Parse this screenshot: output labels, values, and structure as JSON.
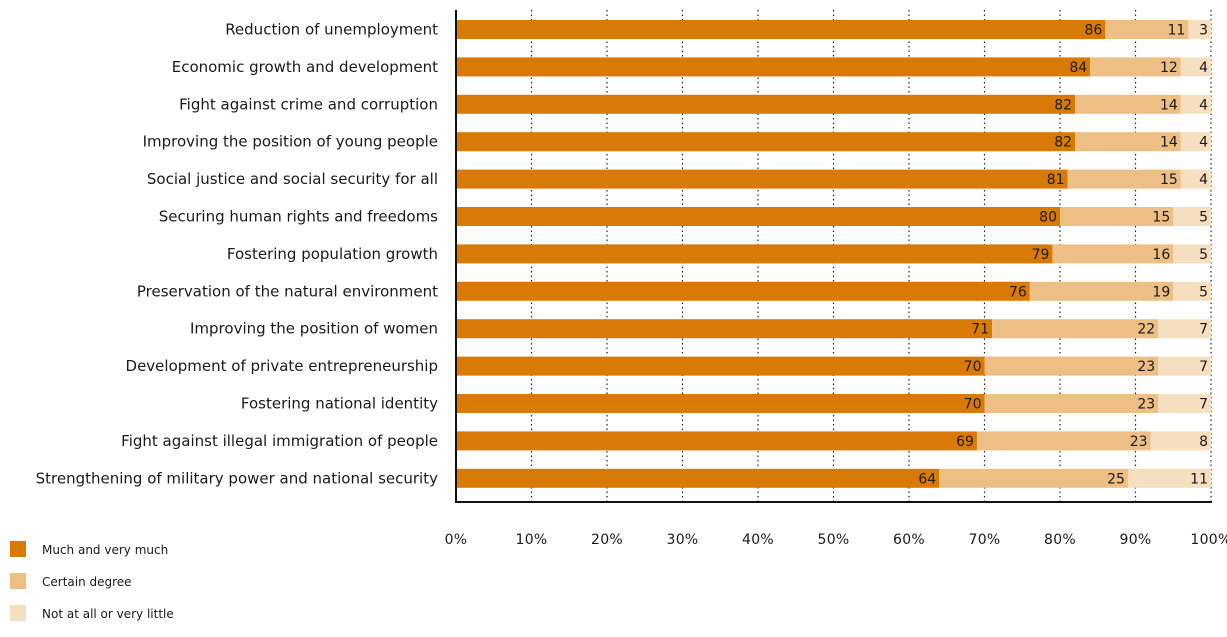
{
  "chart_data": {
    "type": "bar",
    "orientation": "horizontal",
    "stacked": true,
    "categories": [
      "Reduction of unemployment",
      "Economic growth and development",
      "Fight against crime and corruption",
      "Improving the position of young people",
      "Social justice and social security for all",
      "Securing human rights and freedoms",
      "Fostering population growth",
      "Preservation of the natural environment",
      "Improving the position of women",
      "Development of private entrepreneurship",
      "Fostering national identity",
      "Fight against illegal immigration of people",
      "Strengthening of military power and national security"
    ],
    "series": [
      {
        "name": "Much and very much",
        "color": "#d97a06",
        "values": [
          86,
          84,
          82,
          82,
          81,
          80,
          79,
          76,
          71,
          70,
          70,
          69,
          64
        ]
      },
      {
        "name": "Certain degree",
        "color": "#edbf85",
        "values": [
          11,
          12,
          14,
          14,
          15,
          15,
          16,
          19,
          22,
          23,
          23,
          23,
          25
        ]
      },
      {
        "name": "Not at all or very little",
        "color": "#f6dfc0",
        "values": [
          3,
          4,
          4,
          4,
          4,
          5,
          5,
          5,
          7,
          7,
          7,
          8,
          11
        ]
      }
    ],
    "xlim": [
      0,
      100
    ],
    "x_ticks": [
      "0%",
      "10%",
      "20%",
      "30%",
      "40%",
      "50%",
      "60%",
      "70%",
      "80%",
      "90%",
      "100%"
    ],
    "grid": true,
    "legend_position": "bottom-left"
  }
}
